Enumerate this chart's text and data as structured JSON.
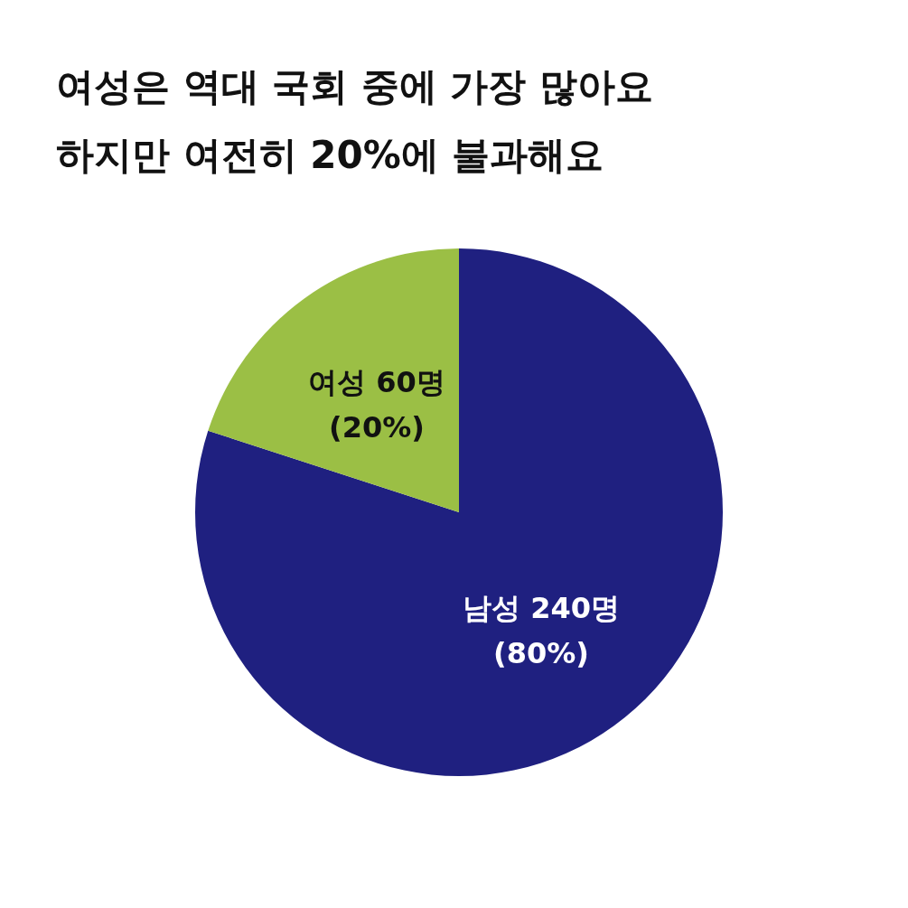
{
  "chart_data": {
    "type": "pie",
    "title": "여성은 역대 국회 중에 가장 많아요\n하지만 여전히 20%에 불과해요",
    "categories": [
      "남성",
      "여성"
    ],
    "values": [
      240,
      60
    ],
    "colors": [
      "#1f2080",
      "#9bbf45"
    ],
    "value_labels": [
      "240명 (80%)",
      "60명 (20%)"
    ],
    "legend": false
  }
}
